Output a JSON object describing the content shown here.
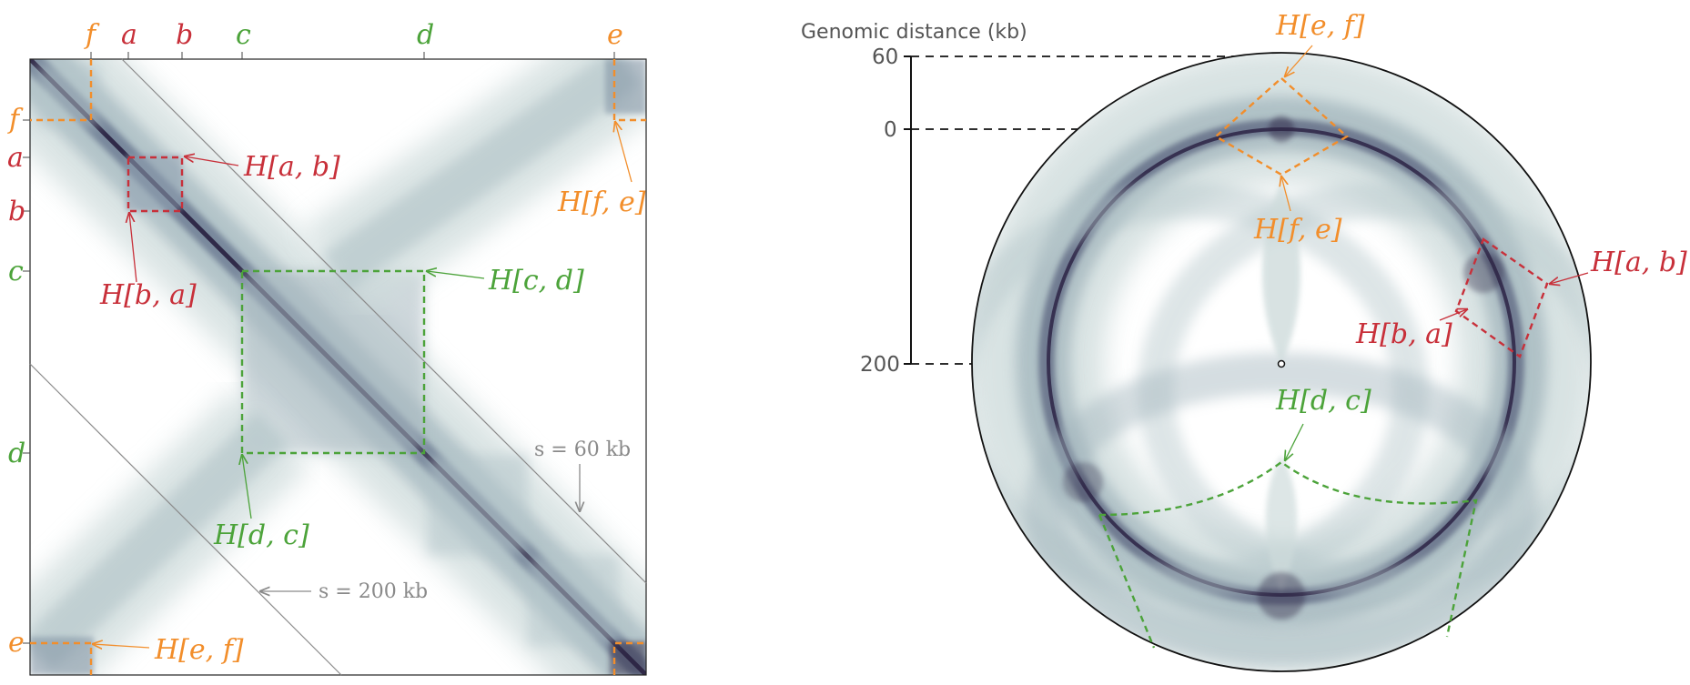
{
  "colors": {
    "orange": "#F28E2B",
    "red": "#C8303A",
    "green": "#4CA33A",
    "gray": "#8a8a8a",
    "heat_light": "#cfdcdc",
    "heat_mid": "#8fa3b0",
    "heat_dark": "#2d2545"
  },
  "left_panel": {
    "top_ticks": [
      {
        "id": "f",
        "label": "f",
        "color": "orange"
      },
      {
        "id": "a",
        "label": "a",
        "color": "red"
      },
      {
        "id": "b",
        "label": "b",
        "color": "red"
      },
      {
        "id": "c",
        "label": "c",
        "color": "green"
      },
      {
        "id": "d",
        "label": "d",
        "color": "green"
      },
      {
        "id": "e",
        "label": "e",
        "color": "orange"
      }
    ],
    "side_ticks": [
      {
        "id": "f",
        "label": "f",
        "color": "orange"
      },
      {
        "id": "a",
        "label": "a",
        "color": "red"
      },
      {
        "id": "b",
        "label": "b",
        "color": "red"
      },
      {
        "id": "c",
        "label": "c",
        "color": "green"
      },
      {
        "id": "d",
        "label": "d",
        "color": "green"
      },
      {
        "id": "e",
        "label": "e",
        "color": "orange"
      }
    ],
    "annotations": {
      "hab": "H[a, b]",
      "hba": "H[b, a]",
      "hcd": "H[c, d]",
      "hdc": "H[d, c]",
      "hfe": "H[f, e]",
      "hef": "H[e, f]"
    },
    "distance_labels": {
      "s60": "s = 60 kb",
      "s200": "s = 200 kb"
    }
  },
  "right_panel": {
    "axis_title": "Genomic distance (kb)",
    "axis_ticks": {
      "t60": "60",
      "t0": "0",
      "t200": "200"
    },
    "annotations": {
      "hef": "H[e, f]",
      "hfe": "H[f, e]",
      "hab": "H[a, b]",
      "hba": "H[b, a]",
      "hdc": "H[d, c]"
    }
  }
}
